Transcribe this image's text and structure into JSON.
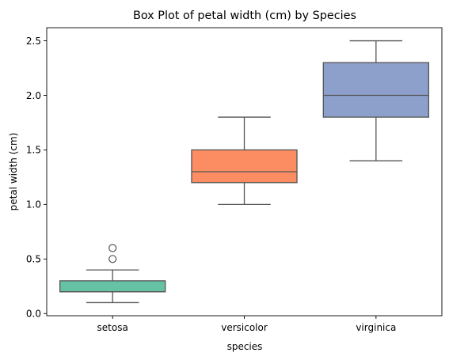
{
  "chart_data": {
    "type": "box",
    "title": "Box Plot of petal width (cm) by Species",
    "xlabel": "species",
    "ylabel": "petal width (cm)",
    "ylim": [
      -0.02,
      2.62
    ],
    "yticks": [
      0.0,
      0.5,
      1.0,
      1.5,
      2.0,
      2.5
    ],
    "ytick_labels": [
      "0.0",
      "0.5",
      "1.0",
      "1.5",
      "2.0",
      "2.5"
    ],
    "grid": false,
    "legend": "none",
    "categories": [
      "setosa",
      "versicolor",
      "virginica"
    ],
    "boxes": [
      {
        "category": "setosa",
        "whisker_low": 0.1,
        "q1": 0.2,
        "median": 0.2,
        "q3": 0.3,
        "whisker_high": 0.4,
        "outliers": [
          0.5,
          0.6
        ],
        "color": "#66c2a5"
      },
      {
        "category": "versicolor",
        "whisker_low": 1.0,
        "q1": 1.2,
        "median": 1.3,
        "q3": 1.5,
        "whisker_high": 1.8,
        "outliers": [],
        "color": "#fc8d62"
      },
      {
        "category": "virginica",
        "whisker_low": 1.4,
        "q1": 1.8,
        "median": 2.0,
        "q3": 2.3,
        "whisker_high": 2.5,
        "outliers": [],
        "color": "#8da0cb"
      }
    ],
    "line_color": "#555555"
  }
}
